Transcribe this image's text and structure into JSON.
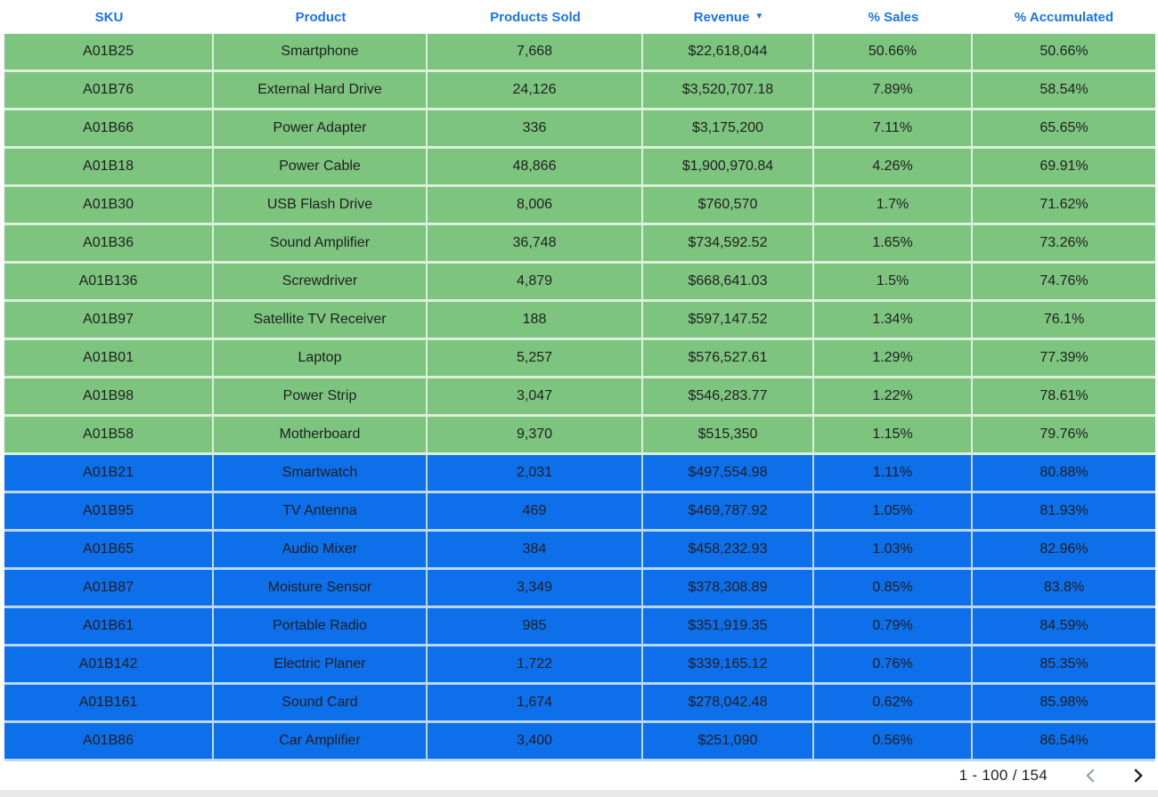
{
  "colors": {
    "green_row": "#7dc47f",
    "blue_row": "#0e6feb",
    "header_text": "#1a73e8",
    "prev_icon": "#9aa0a6",
    "next_icon": "#202124"
  },
  "table": {
    "columns": [
      {
        "id": "sku",
        "label": "SKU",
        "sorted": null
      },
      {
        "id": "product",
        "label": "Product",
        "sorted": null
      },
      {
        "id": "products_sold",
        "label": "Products Sold",
        "sorted": null
      },
      {
        "id": "revenue",
        "label": "Revenue",
        "sorted": "desc"
      },
      {
        "id": "pct_sales",
        "label": "% Sales",
        "sorted": null
      },
      {
        "id": "pct_accumulated",
        "label": "% Accumulated",
        "sorted": null
      }
    ],
    "sort_desc_icon": "▼",
    "rows": [
      {
        "sku": "A01B25",
        "product": "Smartphone",
        "products_sold": "7,668",
        "revenue": "$22,618,044",
        "pct_sales": "50.66%",
        "pct_accumulated": "50.66%",
        "band": "green"
      },
      {
        "sku": "A01B76",
        "product": "External Hard Drive",
        "products_sold": "24,126",
        "revenue": "$3,520,707.18",
        "pct_sales": "7.89%",
        "pct_accumulated": "58.54%",
        "band": "green"
      },
      {
        "sku": "A01B66",
        "product": "Power Adapter",
        "products_sold": "336",
        "revenue": "$3,175,200",
        "pct_sales": "7.11%",
        "pct_accumulated": "65.65%",
        "band": "green"
      },
      {
        "sku": "A01B18",
        "product": "Power Cable",
        "products_sold": "48,866",
        "revenue": "$1,900,970.84",
        "pct_sales": "4.26%",
        "pct_accumulated": "69.91%",
        "band": "green"
      },
      {
        "sku": "A01B30",
        "product": "USB Flash Drive",
        "products_sold": "8,006",
        "revenue": "$760,570",
        "pct_sales": "1.7%",
        "pct_accumulated": "71.62%",
        "band": "green"
      },
      {
        "sku": "A01B36",
        "product": "Sound Amplifier",
        "products_sold": "36,748",
        "revenue": "$734,592.52",
        "pct_sales": "1.65%",
        "pct_accumulated": "73.26%",
        "band": "green"
      },
      {
        "sku": "A01B136",
        "product": "Screwdriver",
        "products_sold": "4,879",
        "revenue": "$668,641.03",
        "pct_sales": "1.5%",
        "pct_accumulated": "74.76%",
        "band": "green"
      },
      {
        "sku": "A01B97",
        "product": "Satellite TV Receiver",
        "products_sold": "188",
        "revenue": "$597,147.52",
        "pct_sales": "1.34%",
        "pct_accumulated": "76.1%",
        "band": "green"
      },
      {
        "sku": "A01B01",
        "product": "Laptop",
        "products_sold": "5,257",
        "revenue": "$576,527.61",
        "pct_sales": "1.29%",
        "pct_accumulated": "77.39%",
        "band": "green"
      },
      {
        "sku": "A01B98",
        "product": "Power Strip",
        "products_sold": "3,047",
        "revenue": "$546,283.77",
        "pct_sales": "1.22%",
        "pct_accumulated": "78.61%",
        "band": "green"
      },
      {
        "sku": "A01B58",
        "product": "Motherboard",
        "products_sold": "9,370",
        "revenue": "$515,350",
        "pct_sales": "1.15%",
        "pct_accumulated": "79.76%",
        "band": "green"
      },
      {
        "sku": "A01B21",
        "product": "Smartwatch",
        "products_sold": "2,031",
        "revenue": "$497,554.98",
        "pct_sales": "1.11%",
        "pct_accumulated": "80.88%",
        "band": "blue"
      },
      {
        "sku": "A01B95",
        "product": "TV Antenna",
        "products_sold": "469",
        "revenue": "$469,787.92",
        "pct_sales": "1.05%",
        "pct_accumulated": "81.93%",
        "band": "blue"
      },
      {
        "sku": "A01B65",
        "product": "Audio Mixer",
        "products_sold": "384",
        "revenue": "$458,232.93",
        "pct_sales": "1.03%",
        "pct_accumulated": "82.96%",
        "band": "blue"
      },
      {
        "sku": "A01B87",
        "product": "Moisture Sensor",
        "products_sold": "3,349",
        "revenue": "$378,308.89",
        "pct_sales": "0.85%",
        "pct_accumulated": "83.8%",
        "band": "blue"
      },
      {
        "sku": "A01B61",
        "product": "Portable Radio",
        "products_sold": "985",
        "revenue": "$351,919.35",
        "pct_sales": "0.79%",
        "pct_accumulated": "84.59%",
        "band": "blue"
      },
      {
        "sku": "A01B142",
        "product": "Electric Planer",
        "products_sold": "1,722",
        "revenue": "$339,165.12",
        "pct_sales": "0.76%",
        "pct_accumulated": "85.35%",
        "band": "blue"
      },
      {
        "sku": "A01B161",
        "product": "Sound Card",
        "products_sold": "1,674",
        "revenue": "$278,042.48",
        "pct_sales": "0.62%",
        "pct_accumulated": "85.98%",
        "band": "blue"
      },
      {
        "sku": "A01B86",
        "product": "Car Amplifier",
        "products_sold": "3,400",
        "revenue": "$251,090",
        "pct_sales": "0.56%",
        "pct_accumulated": "86.54%",
        "band": "blue"
      }
    ]
  },
  "pagination": {
    "range_label": "1 - 100 / 154",
    "prev_enabled": false,
    "next_enabled": true
  }
}
